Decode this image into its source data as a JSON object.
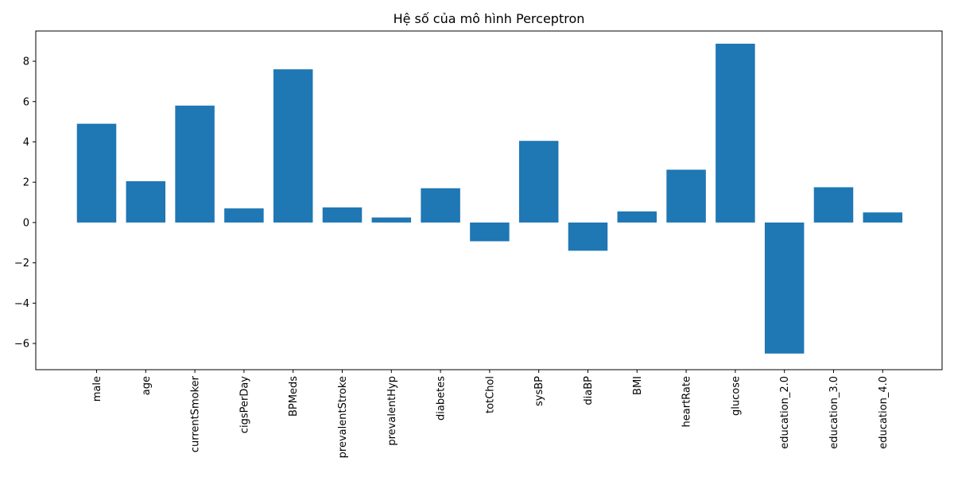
{
  "chart_data": {
    "type": "bar",
    "title": "Hệ số của mô hình Perceptron",
    "xlabel": "",
    "ylabel": "",
    "categories": [
      "male",
      "age",
      "currentSmoker",
      "cigsPerDay",
      "BPMeds",
      "prevalentStroke",
      "prevalentHyp",
      "diabetes",
      "totChol",
      "sysBP",
      "diaBP",
      "BMI",
      "heartRate",
      "glucose",
      "education_2.0",
      "education_3.0",
      "education_4.0"
    ],
    "values": [
      4.9,
      2.05,
      5.8,
      0.7,
      7.6,
      0.75,
      0.25,
      1.7,
      -0.93,
      4.05,
      -1.4,
      0.55,
      2.62,
      8.87,
      -6.5,
      1.75,
      0.5
    ],
    "ylim": [
      -7.3,
      9.5
    ],
    "yticks": [
      -6,
      -4,
      -2,
      0,
      2,
      4,
      6,
      8
    ],
    "ytick_labels": [
      "−6",
      "−4",
      "−2",
      "0",
      "2",
      "4",
      "6",
      "8"
    ],
    "bar_color": "#1f77b4",
    "grid": false
  }
}
